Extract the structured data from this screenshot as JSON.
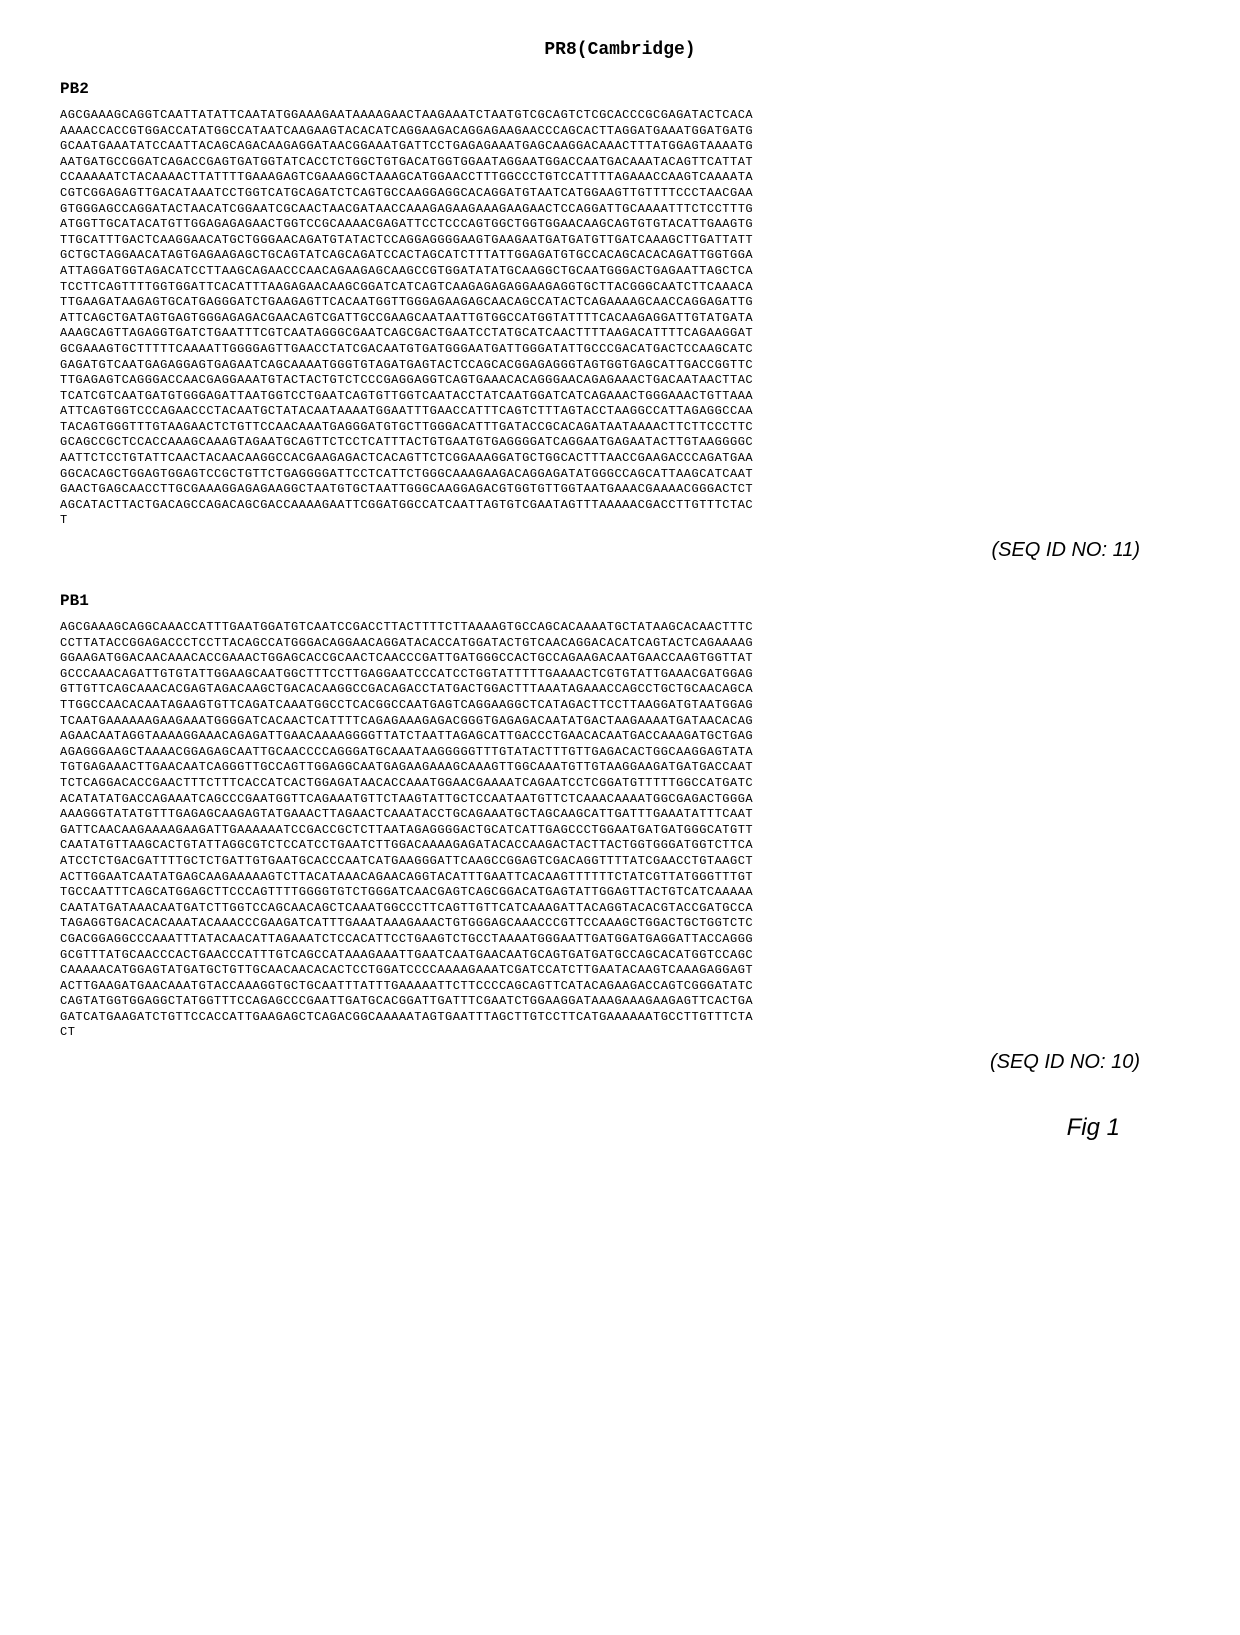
{
  "header": "PR8(Cambridge)",
  "sections": [
    {
      "label": "PB2",
      "sequence": "AGCGAAAGCAGGTCAATTATATTCAATATGGAAAGAATAAAAGAACTAAGAAATCTAATGTCGCAGTCTCGCACCCGCGAGATACTCACAAAAACCACCGTGGACCATATGGCCATAATCAAGAAGTACACATCAGGAAGACAGGAGAAGAACCCAGCACTTAGGATGAAATGGATGATGGCAATGAAATATCCAATTACAGCAGACAAGAGGATAACGGAAATGATTCCTGAGAGAAATGAGCAAGGACAAACTTTATGGAGTAAAATGAATGATGCCGGATCAGACCGAGTGATGGTATCACCTCTGGCTGTGACATGGTGGAATAGGAATGGACCAATGACAAATACAGTTCATTATCCAAAAATCTACAAAACTTATTTTGAAAGAGTCGAAAGGCTAAAGCATGGAACCTTTGGCCCTGTCCATTTTAGAAACCAAGTCAAAATACGTCGGAGAGTTGACATAAATCCTGGTCATGCAGATCTCAGTGCCAAGGAGGCACAGGATGTAATCATGGAAGTTGTTTTCCCTAACGAAGTGGGAGCCAGGATACTAACATCGGAATCGCAACTAACGATAACCAAAGAGAAGAAAGAAGAACTCCAGGATTGCAAAATTTCTCCTTTGATGGTTGCATACATGTTGGAGAGAGAACTGGTCCGCAAAACGAGATTCCTCCCAGTGGCTGGTGGAACAAGCAGTGTGTACATTGAAGTGTTGCATTTGACTCAAGGAACATGCTGGGAACAGATGTATACTCCAGGAGGGGAAGTGAAGAATGATGATGTTGATCAAAGCTTGATTATTGCTGCTAGGAACATAGTGAGAAGAGCTGCAGTATCAGCAGATCCACTAGCATCTTTATTGGAGATGTGCCACAGCACACAGATTGGTGGAATTAGGATGGTAGACATCCTTAAGCAGAACCCAACAGAAGAGCAAGCCGTGGATATATGCAAGGCTGCAATGGGACTGAGAATTAGCTCATCCTTCAGTTTTGGTGGATTCACATTTAAGAGAACAAGCGGATCATCAGTCAAGAGAGAGGAAGAGGTGCTTACGGGCAATCTTCAAACATTGAAGATAAGAGTGCATGAGGGATCTGAAGAGTTCACAATGGTTGGGAGAAGAGCAACAGCCATACTCAGAAAAGCAACCAGGAGATTGATTCAGCTGATAGTGAGTGGGAGAGACGAACAGTCGATTGCCGAAGCAATAATTGTGGCCATGGTATTTTCACAAGAGGATTGTATGATAAAAGCAGTTAGAGGTGATCTGAATTTCGTCAATAGGGCGAATCAGCGACTGAATCCTATGCATCAACTTTTAAGACATTTTCAGAAGGATGCGAAAGTGCTTTTTCAAAATTGGGGAGTTGAACCTATCGACAATGTGATGGGAATGATTGGGATATTGCCCGACATGACTCCAAGCATCGAGATGTCAATGAGAGGAGTGAGAATCAGCAAAATGGGTGTAGATGAGTACTCCAGCACGGAGAGGGTAGTGGTGAGCATTGACCGGTTCTTGAGAGTCAGGGACCAACGAGGAAATGTACTACTGTCTCCCGAGGAGGTCAGTGAAACACAGGGAACAGAGAAACTGACAATAACTTACTCATCGTCAATGATGTGGGAGATTAATGGTCCTGAATCAGTGTTGGTCAATACCTATCAATGGATCATCAGAAACTGGGAAACTGTTAAAATTCAGTGGTCCCAGAACCCTACAATGCTATACAATAAAATGGAATTTGAACCATTTCAGTCTTTAGTACCTAAGGCCATTAGAGGCCAATACAGTGGGTTTGTAAGAACTCTGTTCCAACAAATGAGGGATGTGCTTGGGACATTTGATACCGCACAGATAATAAAACTTCTTCCCTTCGCAGCCGCTCCACCAAAGCAAAGTAGAATGCAGTTCTCCTCATTTACTGTGAATGTGAGGGGATCAGGAATGAGAATACTTGTAAGGGGCAATTCTCCTGTATTCAACTACAACAAGGCCACGAAGAGACTCACAGTTCTCGGAAAGGATGCTGGCACTTTAACCGAAGACCCAGATGAAGGCACAGCTGGAGTGGAGTCCGCTGTTCTGAGGGGATTCCTCATTCTGGGCAAAGAAGACAGGAGATATGGGCCAGCATTAAGCATCAATGAACTGAGCAACCTTGCGAAAGGAGAGAAGGCTAATGTGCTAATTGGGCAAGGAGACGTGGTGTTGGTAATGAAACGAAAACGGGACTCTAGCATACTTACTGACAGCCAGACAGCGACCAAAAGAATTCGGATGGCCATCAATTAGTGTCGAATAGTTTAAAAACGACCTTGTTTCTACT",
      "seq_id": "(SEQ ID NO: 11)"
    },
    {
      "label": "PB1",
      "sequence": "AGCGAAAGCAGGCAAACCATTTGAATGGATGTCAATCCGACCTTACTTTTCTTAAAAGTGCCAGCACAAAATGCTATAAGCACAACTTTCCCTTATACCGGAGACCCTCCTTACAGCCATGGGACAGGAACAGGATACACCATGGATACTGTCAACAGGACACATCAGTACTCAGAAAAGGGAAGATGGACAACAAACACCGAAACTGGAGCACCGCAACTCAACCCGATTGATGGGCCACTGCCAGAAGACAATGAACCAAGTGGTTATGCCCAAACAGATTGTGTATTGGAAGCAATGGCTTTCCTTGAGGAATCCCATCCTGGTATTTTTGAAAACTCGTGTATTGAAACGATGGAGGTTGTTCAGCAAACACGAGTAGACAAGCTGACACAAGGCCGACAGACCTATGACTGGACTTTAAATAGAAACCAGCCTGCTGCAACAGCATTGGCCAACACAATAGAAGTGTTCAGATCAAATGGCCTCACGGCCAATGAGTCAGGAAGGCTCATAGACTTCCTTAAGGATGTAATGGAGTCAATGAAAAAAGAAGAAATGGGGATCACAACTCATTTTCAGAGAAAGAGACGGGTGAGAGACAATATGACTAAGAAAATGATAACACAGAGAACAATAGGTAAAAGGAAACAGAGATTGAACAAAAGGGGTTATCTAATTAGAGCATTGACCCTGAACACAATGACCAAAGATGCTGAGAGAGGGAAGCTAAAACGGAGAGCAATTGCAACCCCAGGGATGCAAATAAGGGGGTTTGTATACTTTGTTGAGACACTGGCAAGGAGTATATGTGAGAAACTTGAACAATCAGGGTTGCCAGTTGGAGGCAATGAGAAGAAAGCAAAGTTGGCAAATGTTGTAAGGAAGATGATGACCAATTCTCAGGACACCGAACTTTCTTTCACCATCACTGGAGATAACACCAAATGGAACGAAAATCAGAATCCTCGGATGTTTTTGGCCATGATCACATATATGACCAGAAATCAGCCCGAATGGTTCAGAAATGTTCTAAGTATTGCTCCAATAATGTTCTCAAACAAAATGGCGAGACTGGGAAAAGGGTATATGTTTGAGAGCAAGAGTATGAAACTTAGAACTCAAATACCTGCAGAAATGCTAGCAAGCATTGATTTGAAATATTTCAATGATTCAACAAGAAAAGAAGATTGAAAAAATCCGACCGCTCTTAATAGAGGGGACTGCATCATTGAGCCCTGGAATGATGATGGGCATGTTCAATATGTTAAGCACTGTATTAGGCGTCTCCATCCTGAATCTTGGACAAAAGAGATACACCAAGACTACTTACTGGTGGGATGGTCTTCAATCCTCTGACGATTTTGCTCTGATTGTGAATGCACCCAATCATGAAGGGATTCAAGCCGGAGTCGACAGGTTTTATCGAACCTGTAAGCTACTTGGAATCAATATGAGCAAGAAAAAGTCTTACATAAACAGAACAGGTACATTTGAATTCACAAGTTTTTTCTATCGTTATGGGTTTGTTGCCAATTTCAGCATGGAGCTTCCCAGTTTTGGGGTGTCTGGGATCAACGAGTCAGCGGACATGAGTATTGGAGTTACTGTCATCAAAAACAATATGATAAACAATGATCTTGGTCCAGCAACAGCTCAAATGGCCCTTCAGTTGTTCATCAAAGATTACAGGTACACGTACCGATGCCATAGAGGTGACACACAAATACAAACCCGAAGATCATTTGAAATAAAGAAACTGTGGGAGCAAACCCGTTCCAAAGCTGGACTGCTGGTCTCCGACGGAGGCCCAAATTTATACAACATTAGAAATCTCCACATTCCTGAAGTCTGCCTAAAATGGGAATTGATGGATGAGGATTACCAGGGGCGTTTATGCAACCCACTGAACCCATTTGTCAGCCATAAAGAAATTGAATCAATGAACAATGCAGTGATGATGCCAGCACATGGTCCAGCCAAAAACATGGAGTATGATGCTGTTGCAACAACACACTCCTGGATCCCCAAAAGAAATCGATCCATCTTGAATACAAGTCAAAGAGGAGTACTTGAAGATGAACAAATGTACCAAAGGTGCTGCAATTTATTTGAAAAATTCTTCCCCAGCAGTTCATACAGAAGACCAGTCGGGATATCCAGTATGGTGGAGGCTATGGTTTCCAGAGCCCGAATTGATGCACGGATTGATTTCGAATCTGGAAGGATAAAGAAAGAAGAGTTCACTGAGATCATGAAGATCTGTTCCACCATTGAAGAGCTCAGACGGCAAAAATAGTGAATTTAGCTTGTCCTTCATGAAAAAATGCCTTGTTTCTACT",
      "seq_id": "(SEQ ID NO: 10)"
    }
  ],
  "figure_label": "Fig 1",
  "chars_per_line": 90,
  "styling": {
    "background_color": "#ffffff",
    "text_color": "#000000",
    "sequence_font_size": 12,
    "label_font_size": 16,
    "header_font_size": 18,
    "seq_id_font_size": 20,
    "fig_label_font_size": 24
  }
}
